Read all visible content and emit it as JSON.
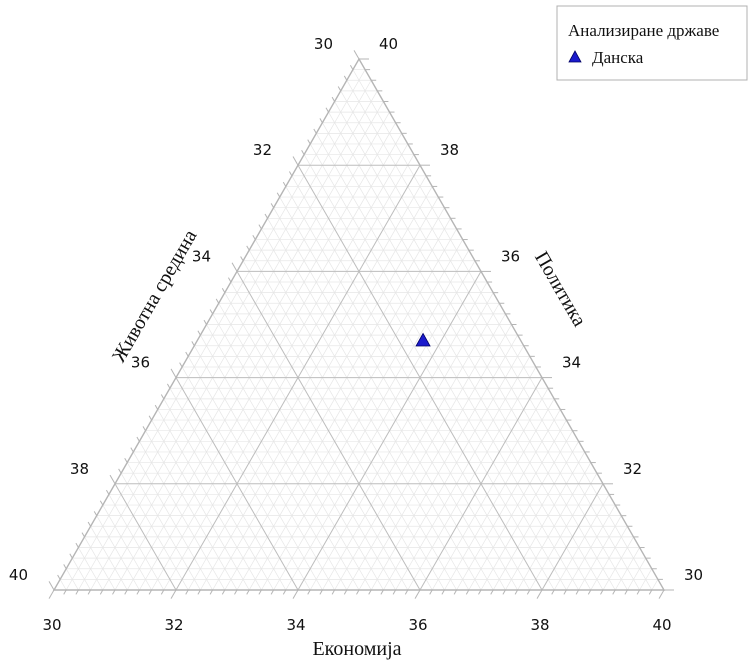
{
  "chart_data": {
    "type": "scatter",
    "subtype": "ternary",
    "axes": {
      "bottom": {
        "label": "Економија",
        "range": [
          30,
          40
        ],
        "ticks": [
          "30",
          "32",
          "34",
          "36",
          "38",
          "40"
        ]
      },
      "left": {
        "label": "Животна средина",
        "range": [
          30,
          40
        ],
        "ticks": [
          "30",
          "32",
          "34",
          "36",
          "38",
          "40"
        ]
      },
      "right": {
        "label": "Политика",
        "range": [
          30,
          40
        ],
        "ticks": [
          "30",
          "32",
          "34",
          "36",
          "38",
          "40"
        ]
      }
    },
    "grid": true,
    "legend": {
      "title": "Анализиране државе",
      "placement": "top-right",
      "entries": [
        {
          "name": "Данска",
          "marker": "triangle",
          "color": "#1a1acc"
        }
      ]
    },
    "series": [
      {
        "name": "Данска",
        "points": [
          {
            "economy": 33.7,
            "environment": 36.6,
            "politics": 34.7
          }
        ]
      }
    ]
  }
}
